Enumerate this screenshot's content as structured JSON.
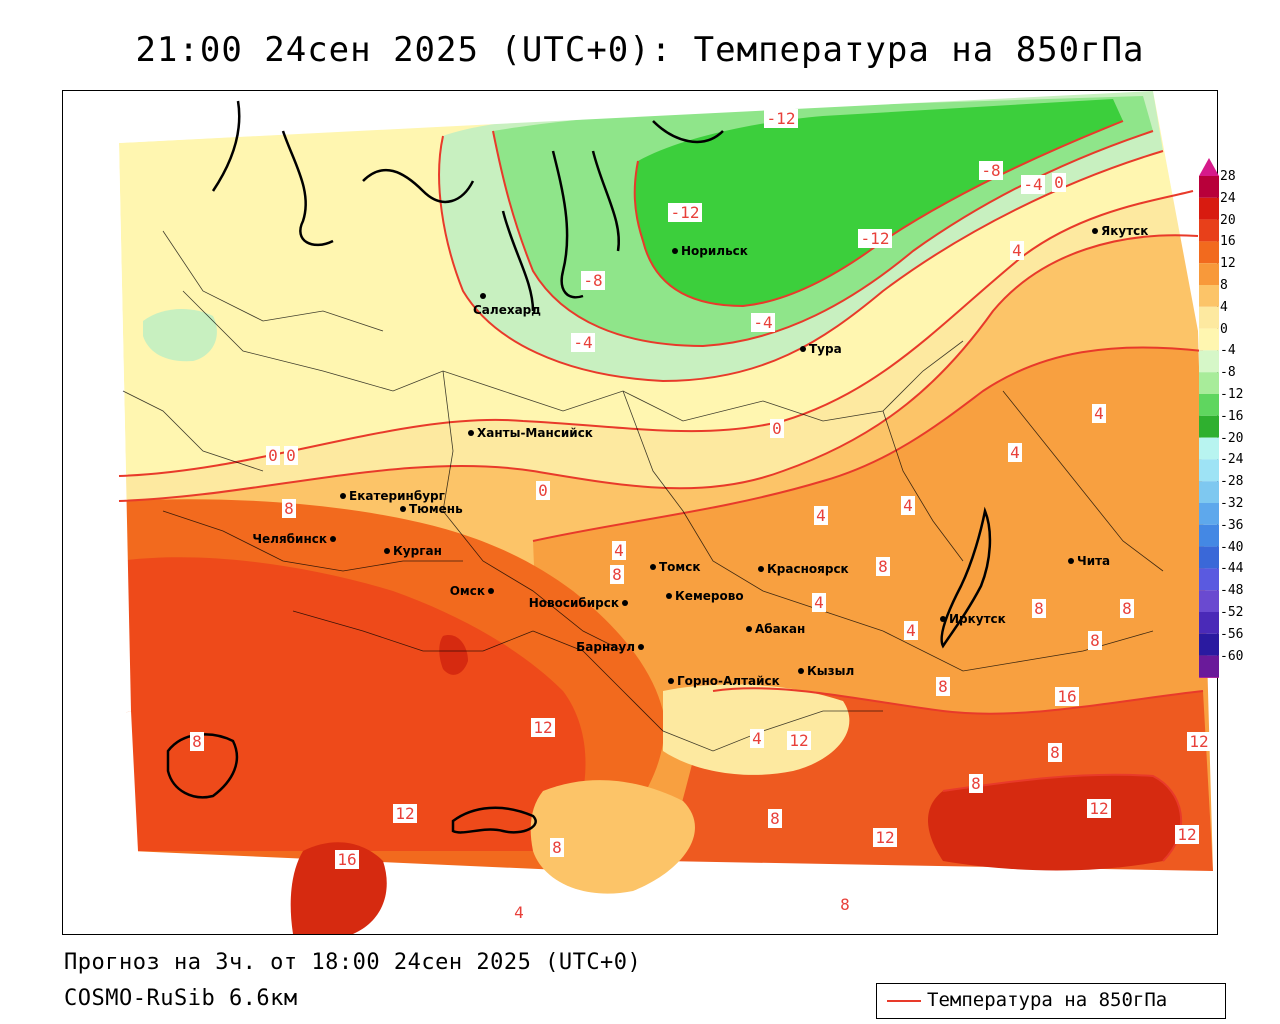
{
  "title": "21:00 24сен 2025 (UTC+0): Температура на 850гПа",
  "footer": {
    "forecast": "Прогноз на 3ч. от 18:00 24сен 2025 (UTC+0)",
    "model": "COSMO-RuSib 6.6км"
  },
  "legend": {
    "label": "Температура на 850гПа"
  },
  "colors": {
    "contour": "#e83a2a",
    "deep_green": "#3ccf3c",
    "mid_green": "#7fe07f",
    "light_green": "#c8f0c0",
    "pale_yellow": "#fff6b0",
    "light_yellow": "#fde9a0",
    "light_orange": "#fcc468",
    "orange": "#f8a040",
    "dark_orange": "#f26a1e",
    "red_orange": "#ee4a1a",
    "red": "#d62a10"
  },
  "colorbar": {
    "ticks": [
      "28",
      "24",
      "20",
      "16",
      "12",
      "8",
      "4",
      "0",
      "-4",
      "-8",
      "-12",
      "-16",
      "-20",
      "-24",
      "-28",
      "-32",
      "-36",
      "-40",
      "-44",
      "-48",
      "-52",
      "-56",
      "-60"
    ],
    "colors": [
      "#b8003a",
      "#d81b10",
      "#e8401a",
      "#f26a1e",
      "#f8993a",
      "#fcc468",
      "#fde9a0",
      "#fff6b0",
      "#d6f7c8",
      "#a8ec9a",
      "#5fd65f",
      "#2fb02f",
      "#b8f4f0",
      "#9ee3f5",
      "#7ec8f0",
      "#5ea8ec",
      "#4488e4",
      "#3a68d8",
      "#5a5ae0",
      "#6a4ad0",
      "#4a2ab8",
      "#2a1aa0",
      "#6a1a9a"
    ]
  },
  "cities": [
    {
      "name": "Якутск"
    },
    {
      "name": "Норильск"
    },
    {
      "name": "Салехард"
    },
    {
      "name": "Тура"
    },
    {
      "name": "Ханты-Мансийск"
    },
    {
      "name": "Екатеринбург"
    },
    {
      "name": "Тюмень"
    },
    {
      "name": "Челябинск"
    },
    {
      "name": "Курган"
    },
    {
      "name": "Омск"
    },
    {
      "name": "Новосибирск"
    },
    {
      "name": "Томск"
    },
    {
      "name": "Кемерово"
    },
    {
      "name": "Красноярск"
    },
    {
      "name": "Барнаул"
    },
    {
      "name": "Абакан"
    },
    {
      "name": "Горно-Алтайск"
    },
    {
      "name": "Кызыл"
    },
    {
      "name": "Иркутск"
    },
    {
      "name": "Чита"
    }
  ],
  "isotherm_labels": [
    "-12",
    "-12",
    "-12",
    "-8",
    "-4",
    "0",
    "-8",
    "-4",
    "-4",
    "0",
    "0",
    "0",
    "0",
    "4",
    "4",
    "4",
    "4",
    "4",
    "4",
    "4",
    "4",
    "8",
    "8",
    "8",
    "8",
    "8",
    "8",
    "8",
    "8",
    "8",
    "8",
    "12",
    "12",
    "12",
    "12",
    "12",
    "12",
    "12",
    "16",
    "16",
    "4",
    "4",
    "4",
    "8",
    "8",
    "8"
  ]
}
